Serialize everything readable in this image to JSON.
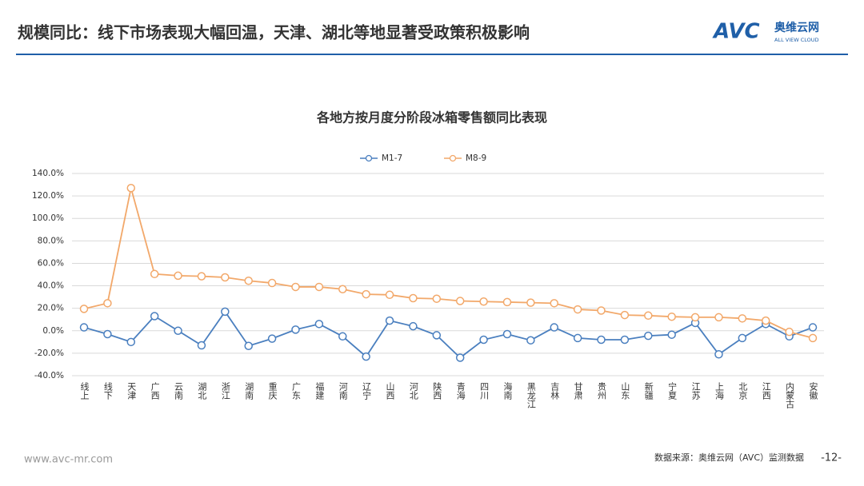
{
  "header": {
    "title": "规模同比：线下市场表现大幅回温，天津、湖北等地显著受政策积极影响",
    "logo": {
      "mark": "AVC",
      "name": "奥维云网",
      "tagline": "ALL VIEW CLOUD"
    }
  },
  "chart_data": {
    "type": "line",
    "title": "各地方按月度分阶段冰箱零售额同比表现",
    "categories": [
      "线上",
      "线下",
      "天津",
      "广西",
      "云南",
      "湖北",
      "浙江",
      "湖南",
      "重庆",
      "广东",
      "福建",
      "河南",
      "辽宁",
      "山西",
      "河北",
      "陕西",
      "青海",
      "四川",
      "海南",
      "黑龙江",
      "吉林",
      "甘肃",
      "贵州",
      "山东",
      "新疆",
      "宁夏",
      "江苏",
      "上海",
      "北京",
      "江西",
      "内蒙古",
      "安徽"
    ],
    "series": [
      {
        "name": "M1-7",
        "color": "#4a7fbf",
        "values": [
          3,
          -3,
          -10,
          13,
          0,
          -13,
          17,
          -13.5,
          -7,
          1,
          6,
          -5,
          -23,
          9,
          4,
          -4,
          -24,
          -8,
          -3,
          -8.5,
          3,
          -6.5,
          -8,
          -8,
          -4.5,
          -3.5,
          7,
          -21,
          -6.5,
          6,
          -5,
          3
        ]
      },
      {
        "name": "M8-9",
        "color": "#f2a86a",
        "values": [
          19.5,
          24.5,
          127,
          50.5,
          49,
          48.5,
          47.5,
          44.5,
          42.5,
          39,
          39,
          37,
          32.5,
          32,
          29,
          28.5,
          26.5,
          26,
          25.5,
          25,
          24.5,
          19,
          18,
          14,
          13.5,
          12.5,
          12,
          12,
          11,
          9,
          -1,
          -6.5
        ]
      }
    ],
    "ylim": [
      -40,
      140
    ],
    "yticks": [
      {
        "value": -40,
        "label": "-40.0%"
      },
      {
        "value": -20,
        "label": "-20.0%"
      },
      {
        "value": 0,
        "label": "0.0%"
      },
      {
        "value": 20,
        "label": "20.0%"
      },
      {
        "value": 40,
        "label": "40.0%"
      },
      {
        "value": 60,
        "label": "60.0%"
      },
      {
        "value": 80,
        "label": "80.0%"
      },
      {
        "value": 100,
        "label": "100.0%"
      },
      {
        "value": 120,
        "label": "120.0%"
      },
      {
        "value": 140,
        "label": "140.0%"
      }
    ],
    "grid": true
  },
  "footer": {
    "website": "www.avc-mr.com",
    "source": "数据来源：奥维云网（AVC）监测数据",
    "page": "-12-"
  }
}
